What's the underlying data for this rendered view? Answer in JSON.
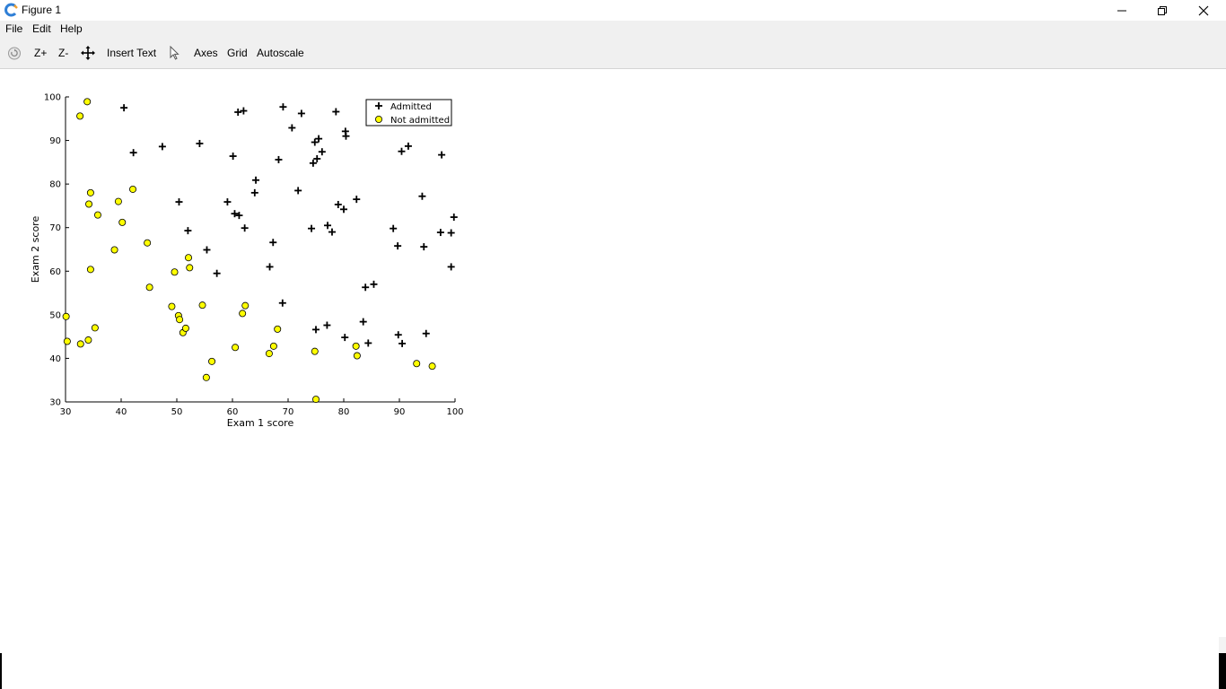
{
  "window": {
    "title": "Figure 1",
    "controls": [
      "minimize",
      "maximize",
      "close"
    ]
  },
  "menu": {
    "items": [
      "File",
      "Edit",
      "Help"
    ]
  },
  "toolbar": {
    "zoom_in": "Z+",
    "zoom_out": "Z-",
    "insert_text": "Insert Text",
    "axes": "Axes",
    "grid": "Grid",
    "autoscale": "Autoscale"
  },
  "colors": {
    "not_admitted_fill": "#ffff00",
    "marker_stroke": "#000000",
    "toolbar_bg": "#f0f0f0"
  },
  "chart_data": {
    "type": "scatter",
    "title": "",
    "xlabel": "Exam 1 score",
    "ylabel": "Exam 2 score",
    "xlim": [
      30,
      100
    ],
    "ylim": [
      30,
      100
    ],
    "xticks": [
      30,
      40,
      50,
      60,
      70,
      80,
      90,
      100
    ],
    "yticks": [
      30,
      40,
      50,
      60,
      70,
      80,
      90,
      100
    ],
    "grid": false,
    "legend_position": "top-right",
    "series": [
      {
        "name": "Admitted",
        "marker": "plus",
        "points": [
          [
            40.5,
            97.5
          ],
          [
            42.2,
            87.2
          ],
          [
            47.4,
            88.6
          ],
          [
            54.1,
            89.3
          ],
          [
            50.4,
            75.9
          ],
          [
            52.0,
            69.3
          ],
          [
            55.4,
            64.9
          ],
          [
            57.2,
            59.5
          ],
          [
            59.1,
            75.9
          ],
          [
            60.1,
            86.4
          ],
          [
            61.0,
            96.5
          ],
          [
            62.0,
            96.8
          ],
          [
            60.4,
            73.2
          ],
          [
            61.2,
            72.8
          ],
          [
            62.2,
            69.9
          ],
          [
            64.0,
            78.0
          ],
          [
            64.2,
            80.9
          ],
          [
            66.7,
            61.0
          ],
          [
            67.3,
            66.6
          ],
          [
            68.3,
            85.6
          ],
          [
            69.0,
            52.7
          ],
          [
            69.1,
            97.7
          ],
          [
            70.7,
            92.9
          ],
          [
            71.8,
            78.5
          ],
          [
            72.4,
            96.2
          ],
          [
            74.2,
            69.8
          ],
          [
            74.5,
            84.8
          ],
          [
            74.8,
            89.6
          ],
          [
            75.2,
            85.8
          ],
          [
            75.5,
            90.4
          ],
          [
            76.1,
            87.4
          ],
          [
            77.1,
            70.5
          ],
          [
            77.9,
            69.0
          ],
          [
            78.6,
            96.6
          ],
          [
            79.0,
            75.3
          ],
          [
            80.0,
            74.2
          ],
          [
            80.3,
            92.1
          ],
          [
            80.4,
            91.0
          ],
          [
            82.3,
            76.5
          ],
          [
            83.5,
            48.4
          ],
          [
            83.9,
            56.3
          ],
          [
            84.4,
            43.5
          ],
          [
            85.4,
            57.0
          ],
          [
            75.0,
            46.6
          ],
          [
            77.0,
            47.6
          ],
          [
            80.2,
            44.8
          ],
          [
            88.9,
            69.8
          ],
          [
            89.7,
            65.8
          ],
          [
            89.8,
            45.4
          ],
          [
            90.4,
            87.5
          ],
          [
            90.5,
            43.4
          ],
          [
            91.6,
            88.7
          ],
          [
            94.1,
            77.2
          ],
          [
            94.4,
            65.6
          ],
          [
            94.8,
            45.7
          ],
          [
            97.4,
            68.9
          ],
          [
            97.6,
            86.7
          ],
          [
            99.3,
            68.8
          ],
          [
            99.3,
            61.0
          ],
          [
            99.8,
            72.4
          ]
        ]
      },
      {
        "name": "Not admitted",
        "marker": "circle",
        "points": [
          [
            32.7,
            43.3
          ],
          [
            33.9,
            98.9
          ],
          [
            32.6,
            95.6
          ],
          [
            34.2,
            75.4
          ],
          [
            34.5,
            78.0
          ],
          [
            34.5,
            60.4
          ],
          [
            35.3,
            47.0
          ],
          [
            35.8,
            72.9
          ],
          [
            34.1,
            44.2
          ],
          [
            30.1,
            49.6
          ],
          [
            30.3,
            43.9
          ],
          [
            38.8,
            64.9
          ],
          [
            39.5,
            76.0
          ],
          [
            40.2,
            71.2
          ],
          [
            42.1,
            78.8
          ],
          [
            44.7,
            66.5
          ],
          [
            45.1,
            56.3
          ],
          [
            49.1,
            51.9
          ],
          [
            49.6,
            59.8
          ],
          [
            50.3,
            49.8
          ],
          [
            50.5,
            48.9
          ],
          [
            51.1,
            45.9
          ],
          [
            51.6,
            46.9
          ],
          [
            52.1,
            63.1
          ],
          [
            52.3,
            60.8
          ],
          [
            54.6,
            52.2
          ],
          [
            55.3,
            35.6
          ],
          [
            56.3,
            39.3
          ],
          [
            60.5,
            42.5
          ],
          [
            61.8,
            50.3
          ],
          [
            62.3,
            52.1
          ],
          [
            66.6,
            41.1
          ],
          [
            67.4,
            42.8
          ],
          [
            68.1,
            46.7
          ],
          [
            75.0,
            30.6
          ],
          [
            74.8,
            41.6
          ],
          [
            82.2,
            42.8
          ],
          [
            82.4,
            40.6
          ],
          [
            93.1,
            38.8
          ],
          [
            95.9,
            38.2
          ]
        ]
      }
    ]
  }
}
